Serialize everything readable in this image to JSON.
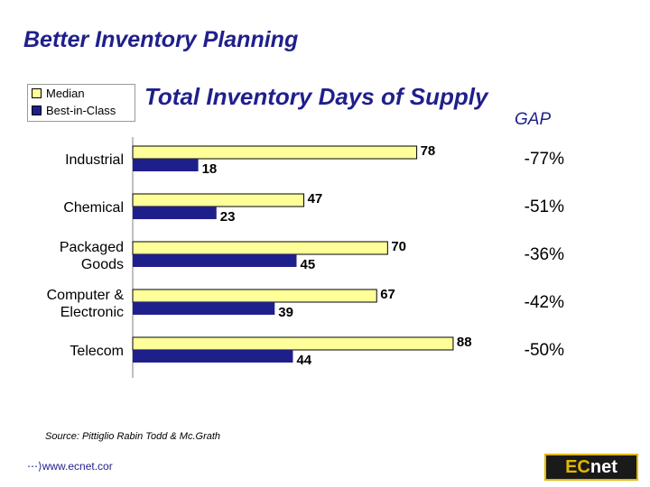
{
  "slide_title": "Better Inventory Planning",
  "legend": {
    "items": [
      {
        "label": "Median",
        "color": "#ffff99"
      },
      {
        "label": "Best-in-Class",
        "color": "#1f1f8c"
      }
    ]
  },
  "gap_header": "GAP",
  "chart_data": {
    "type": "bar",
    "orientation": "horizontal",
    "title": "Total Inventory Days of Supply",
    "categories": [
      "Industrial",
      "Chemical",
      "Packaged Goods",
      "Computer & Electronic",
      "Telecom"
    ],
    "category_lines": [
      [
        "Industrial"
      ],
      [
        "Chemical"
      ],
      [
        "Packaged",
        "Goods"
      ],
      [
        "Computer &",
        "Electronic"
      ],
      [
        "Telecom"
      ]
    ],
    "series": [
      {
        "name": "Median",
        "color": "#ffff99",
        "values": [
          78,
          47,
          70,
          67,
          88
        ]
      },
      {
        "name": "Best-in-Class",
        "color": "#1f1f8c",
        "values": [
          18,
          23,
          45,
          39,
          44
        ]
      }
    ],
    "gap_labels": [
      "-77%",
      "-51%",
      "-36%",
      "-42%",
      "-50%"
    ],
    "xlim": [
      0,
      90
    ]
  },
  "source": "Source:  Pittiglio Rabin Todd & Mc.Grath",
  "url": "www.ecnet.cor",
  "logo": {
    "part1": "EC",
    "part2": "net"
  }
}
